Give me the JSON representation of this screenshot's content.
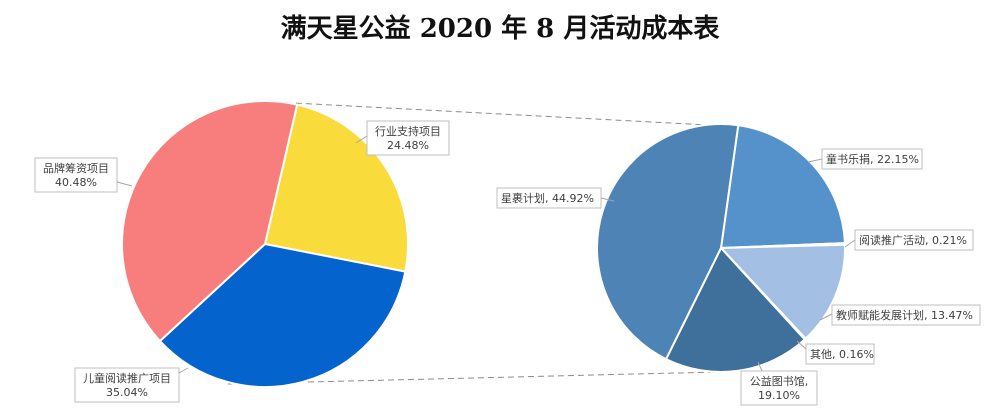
{
  "chart_data": {
    "type": "pie",
    "title": "满天星公益 2020 年 8 月活动成本表",
    "main_pie": {
      "slices": [
        {
          "name": "行业支持项目",
          "value": 24.48,
          "value_label": "24.48%",
          "color": "#F9DC3C"
        },
        {
          "name": "儿童阅读推广项目",
          "value": 35.04,
          "value_label": "35.04%",
          "color": "#0563CE"
        },
        {
          "name": "品牌筹资项目",
          "value": 40.48,
          "value_label": "40.48%",
          "color": "#F77E7C"
        }
      ]
    },
    "detail_pie": {
      "slices": [
        {
          "name": "童书乐捐",
          "value": 22.15,
          "value_label": "22.15%",
          "color": "#5592CC"
        },
        {
          "name": "阅读推广活动",
          "value": 0.21,
          "value_label": "0.21%",
          "color": "#5592CC"
        },
        {
          "name": "教师赋能发展计划",
          "value": 13.47,
          "value_label": "13.47%",
          "color": "#A3BFE3"
        },
        {
          "name": "其他",
          "value": 0.16,
          "value_label": "0.16%",
          "color": "#A3BFE3"
        },
        {
          "name": "公益图书馆",
          "value": 19.1,
          "value_label": "19.10%",
          "color": "#3F6F9B"
        },
        {
          "name": "星裹计划",
          "value": 44.92,
          "value_label": "44.92%",
          "color": "#4E83B5"
        }
      ]
    }
  }
}
